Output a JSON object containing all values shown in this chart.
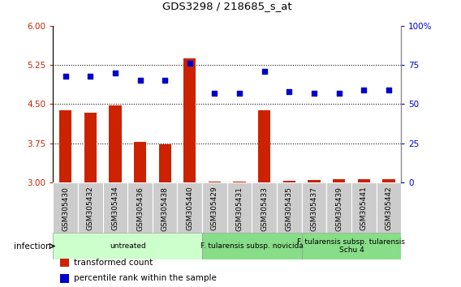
{
  "title": "GDS3298 / 218685_s_at",
  "samples": [
    "GSM305430",
    "GSM305432",
    "GSM305434",
    "GSM305436",
    "GSM305438",
    "GSM305440",
    "GSM305429",
    "GSM305431",
    "GSM305433",
    "GSM305435",
    "GSM305437",
    "GSM305439",
    "GSM305441",
    "GSM305442"
  ],
  "bar_values": [
    4.38,
    4.33,
    4.47,
    3.78,
    3.73,
    5.38,
    3.02,
    3.02,
    4.38,
    3.03,
    3.04,
    3.06,
    3.06,
    3.06
  ],
  "dot_values": [
    68,
    68,
    70,
    65,
    65,
    76,
    57,
    57,
    71,
    58,
    57,
    57,
    59,
    59
  ],
  "bar_color": "#cc2200",
  "dot_color": "#0000cc",
  "ylim_left": [
    3,
    6
  ],
  "ylim_right": [
    0,
    100
  ],
  "yticks_left": [
    3,
    3.75,
    4.5,
    5.25,
    6
  ],
  "yticks_right": [
    0,
    25,
    50,
    75,
    100
  ],
  "ytick_labels_right": [
    "0",
    "25",
    "50",
    "75",
    "100%"
  ],
  "hgrid_vals": [
    3.75,
    4.5,
    5.25
  ],
  "groups": [
    {
      "label": "untreated",
      "start": 0,
      "end": 5,
      "color": "#ccffcc"
    },
    {
      "label": "F. tularensis subsp. novicida",
      "start": 6,
      "end": 9,
      "color": "#88dd88"
    },
    {
      "label": "F. tularensis subsp. tularensis\nSchu 4",
      "start": 10,
      "end": 13,
      "color": "#88dd88"
    }
  ],
  "infection_label": "infection",
  "legend_bar": "transformed count",
  "legend_dot": "percentile rank within the sample",
  "background_color": "#ffffff",
  "sample_bg_color": "#cccccc",
  "bar_width": 0.5
}
